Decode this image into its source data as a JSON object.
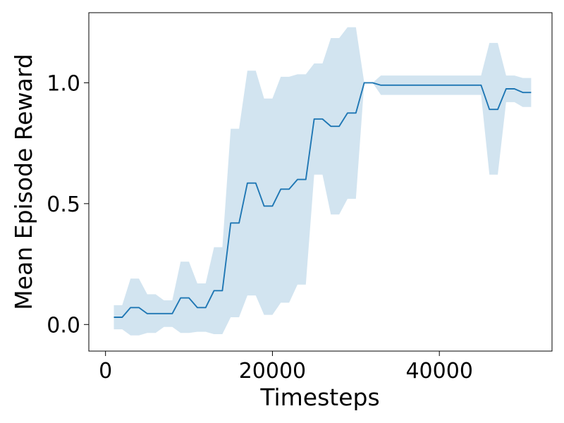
{
  "chart_data": {
    "type": "line",
    "title": "",
    "xlabel": "Timesteps",
    "ylabel": "Mean Episode Reward",
    "xlim": [
      -2000,
      53500
    ],
    "ylim": [
      -0.11,
      1.29
    ],
    "x_ticks": [
      0,
      20000,
      40000
    ],
    "x_tick_labels": [
      "0",
      "20000",
      "40000"
    ],
    "y_ticks": [
      0.0,
      0.5,
      1.0
    ],
    "y_tick_labels": [
      "0.0",
      "0.5",
      "1.0"
    ],
    "grid": false,
    "legend": "none",
    "series": [
      {
        "color": "#1f77b4",
        "band_color": "#1f77b4",
        "x": [
          1000,
          2000,
          3000,
          4000,
          5000,
          6000,
          7000,
          8000,
          9000,
          10000,
          11000,
          12000,
          13000,
          14000,
          15000,
          16000,
          17000,
          18000,
          19000,
          20000,
          21000,
          22000,
          23000,
          24000,
          25000,
          26000,
          27000,
          28000,
          29000,
          30000,
          31000,
          32000,
          33000,
          34000,
          35000,
          36000,
          37000,
          38000,
          39000,
          40000,
          41000,
          42000,
          43000,
          44000,
          45000,
          46000,
          47000,
          48000,
          49000,
          50000,
          51000
        ],
        "y": [
          0.03,
          0.03,
          0.07,
          0.07,
          0.045,
          0.045,
          0.045,
          0.045,
          0.11,
          0.11,
          0.07,
          0.07,
          0.14,
          0.14,
          0.42,
          0.42,
          0.585,
          0.585,
          0.49,
          0.49,
          0.56,
          0.56,
          0.6,
          0.6,
          0.85,
          0.85,
          0.82,
          0.82,
          0.875,
          0.875,
          1.0,
          1.0,
          0.99,
          0.99,
          0.99,
          0.99,
          0.99,
          0.99,
          0.99,
          0.99,
          0.99,
          0.99,
          0.99,
          0.99,
          0.99,
          0.89,
          0.89,
          0.975,
          0.975,
          0.96,
          0.96
        ],
        "y_upper": [
          0.08,
          0.08,
          0.19,
          0.19,
          0.125,
          0.125,
          0.1,
          0.1,
          0.26,
          0.26,
          0.17,
          0.17,
          0.32,
          0.32,
          0.81,
          0.81,
          1.05,
          1.05,
          0.935,
          0.935,
          1.025,
          1.025,
          1.035,
          1.035,
          1.08,
          1.08,
          1.185,
          1.185,
          1.23,
          1.23,
          1.0,
          1.0,
          1.03,
          1.03,
          1.03,
          1.03,
          1.03,
          1.03,
          1.03,
          1.03,
          1.03,
          1.03,
          1.03,
          1.03,
          1.03,
          1.165,
          1.165,
          1.03,
          1.03,
          1.02,
          1.02
        ],
        "y_lower": [
          -0.02,
          -0.02,
          -0.045,
          -0.045,
          -0.035,
          -0.035,
          -0.01,
          -0.01,
          -0.035,
          -0.035,
          -0.03,
          -0.03,
          -0.04,
          -0.04,
          0.03,
          0.03,
          0.12,
          0.12,
          0.04,
          0.04,
          0.09,
          0.09,
          0.165,
          0.165,
          0.62,
          0.62,
          0.455,
          0.455,
          0.52,
          0.52,
          1.0,
          1.0,
          0.95,
          0.95,
          0.95,
          0.95,
          0.95,
          0.95,
          0.95,
          0.95,
          0.95,
          0.95,
          0.95,
          0.95,
          0.95,
          0.62,
          0.62,
          0.92,
          0.92,
          0.9,
          0.9
        ]
      }
    ]
  }
}
